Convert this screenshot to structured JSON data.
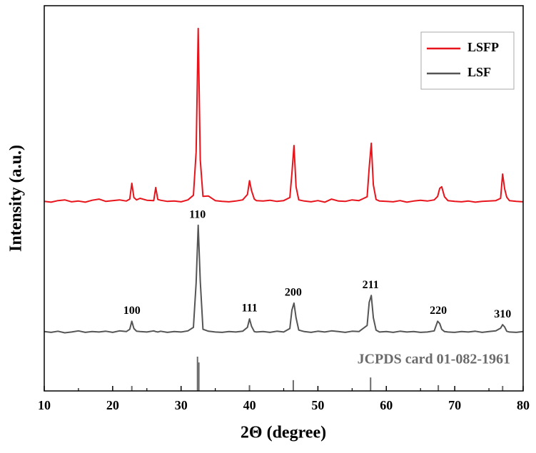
{
  "chart_data": {
    "type": "line",
    "xlabel": "2Θ (degree)",
    "ylabel": "Intensity (a.u.)",
    "xlim": [
      10,
      80
    ],
    "xticks": [
      10,
      20,
      30,
      40,
      50,
      60,
      70,
      80
    ],
    "ylim": [
      0,
      100
    ],
    "legend": "upper right",
    "x": [
      10,
      11,
      12,
      13,
      14,
      15,
      16,
      17,
      18,
      19,
      20,
      21,
      22,
      22.5,
      22.8,
      23.1,
      23.5,
      24,
      25,
      26,
      26.3,
      26.6,
      27,
      28,
      29,
      30,
      31,
      31.8,
      32.2,
      32.5,
      32.8,
      33.2,
      34,
      35,
      36,
      37,
      38,
      39,
      39.7,
      40.0,
      40.3,
      40.7,
      41,
      42,
      43,
      44,
      45,
      45.9,
      46.2,
      46.5,
      46.8,
      47.2,
      48,
      49,
      50,
      51,
      52,
      53,
      54,
      55,
      56,
      57.2,
      57.5,
      57.8,
      58.1,
      58.5,
      59,
      60,
      61,
      62,
      63,
      64,
      65,
      66,
      67,
      67.5,
      67.8,
      68.1,
      68.5,
      69,
      70,
      71,
      72,
      73,
      74,
      75,
      76,
      76.7,
      77.0,
      77.3,
      77.6,
      78,
      79,
      80
    ],
    "series": [
      {
        "name": "LSFP",
        "color": "#e8141c",
        "values": [
          49.2,
          49.0,
          49.4,
          49.6,
          49.1,
          49.3,
          49.0,
          49.5,
          49.8,
          49.2,
          49.4,
          49.6,
          49.3,
          49.8,
          53.9,
          50.2,
          49.6,
          50.0,
          49.5,
          49.4,
          52.8,
          49.7,
          49.5,
          49.2,
          49.3,
          49.1,
          49.6,
          50.8,
          62.0,
          94.1,
          60.0,
          50.5,
          50.6,
          49.4,
          49.2,
          49.1,
          49.3,
          49.6,
          51.0,
          54.6,
          52.0,
          49.8,
          49.4,
          49.3,
          49.5,
          49.2,
          49.4,
          50.2,
          56.5,
          63.7,
          53.0,
          49.6,
          49.3,
          49.1,
          49.4,
          49.0,
          49.8,
          49.3,
          49.2,
          49.6,
          49.4,
          50.4,
          58.0,
          64.3,
          53.5,
          49.7,
          49.3,
          49.2,
          49.1,
          49.4,
          49.0,
          49.3,
          49.5,
          49.3,
          49.6,
          50.5,
          52.6,
          53.0,
          50.4,
          49.4,
          49.2,
          49.1,
          49.3,
          49.0,
          49.2,
          49.3,
          49.4,
          50.0,
          56.3,
          52.4,
          50.3,
          49.4,
          49.2,
          49.1
        ]
      },
      {
        "name": "LSF",
        "color": "#555555",
        "values": [
          15.4,
          15.2,
          15.5,
          15.1,
          15.3,
          15.6,
          15.2,
          15.4,
          15.3,
          15.5,
          15.2,
          15.6,
          15.4,
          16.0,
          18.1,
          16.2,
          15.5,
          15.4,
          15.3,
          15.6,
          15.4,
          15.3,
          15.5,
          15.2,
          15.4,
          15.3,
          15.6,
          16.5,
          28.0,
          43.0,
          28.5,
          16.0,
          15.5,
          15.3,
          15.2,
          15.4,
          15.3,
          15.5,
          16.5,
          18.7,
          16.8,
          15.4,
          15.3,
          15.4,
          15.2,
          15.5,
          15.3,
          16.2,
          21.0,
          22.8,
          19.0,
          15.8,
          15.4,
          15.2,
          15.5,
          15.3,
          15.6,
          15.4,
          15.2,
          15.5,
          15.4,
          17.0,
          23.0,
          24.8,
          19.0,
          15.8,
          15.3,
          15.4,
          15.2,
          15.5,
          15.3,
          15.4,
          15.2,
          15.3,
          15.6,
          18.1,
          17.5,
          16.0,
          15.4,
          15.3,
          15.2,
          15.4,
          15.3,
          15.5,
          15.2,
          15.4,
          15.6,
          16.3,
          17.2,
          16.6,
          15.5,
          15.3,
          15.2,
          15.4
        ]
      }
    ],
    "reference": {
      "name": "JCPDS card 01-082-1961",
      "color": "#6b6b6b",
      "positions": [
        22.8,
        32.4,
        32.6,
        40.0,
        46.4,
        57.7,
        67.6,
        77.0
      ],
      "values": [
        1.3,
        8.9,
        7.4,
        1.5,
        2.8,
        3.5,
        1.5,
        1.3
      ],
      "labels": [
        "100",
        "110",
        null,
        "111",
        "200",
        "211",
        "220",
        "310"
      ]
    }
  }
}
